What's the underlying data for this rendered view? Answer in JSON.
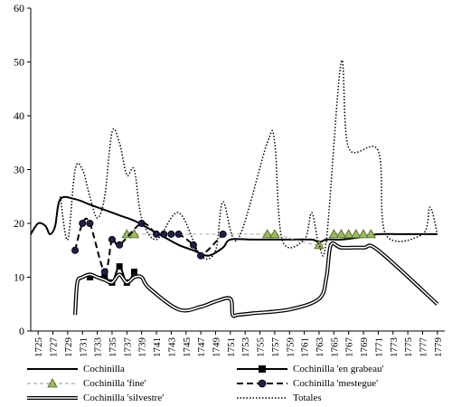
{
  "chart_data": {
    "type": "line",
    "title": "",
    "xlabel": "",
    "ylabel": "",
    "x_tick_labels": [
      "1725",
      "1727",
      "1729",
      "1731",
      "1733",
      "1735",
      "1737",
      "1739",
      "1741",
      "1743",
      "1745",
      "1747",
      "1749",
      "1751",
      "1753",
      "1755",
      "1757",
      "1759",
      "1761",
      "1763",
      "1765",
      "1767",
      "1769",
      "1771",
      "1773",
      "1775",
      "1777",
      "1779"
    ],
    "xlim": [
      1725,
      1781
    ],
    "ylim": [
      0,
      60
    ],
    "y_ticks": [
      0,
      10,
      20,
      30,
      40,
      50,
      60
    ],
    "grid": false,
    "legend_position": "bottom",
    "series": [
      {
        "name": "Cochinilla",
        "style": "solid-thick",
        "color": "#000000",
        "points": [
          [
            1725,
            18
          ],
          [
            1726,
            20
          ],
          [
            1727,
            19.5
          ],
          [
            1727.6,
            18
          ],
          [
            1728.3,
            19.5
          ],
          [
            1729,
            24.5
          ],
          [
            1731,
            24.5
          ],
          [
            1733,
            23.5
          ],
          [
            1735,
            22.5
          ],
          [
            1737,
            21.5
          ],
          [
            1739,
            20.5
          ],
          [
            1741,
            19
          ],
          [
            1743,
            17.5
          ],
          [
            1745,
            16
          ],
          [
            1747,
            15
          ],
          [
            1749,
            14
          ],
          [
            1751,
            15.5
          ],
          [
            1752,
            17
          ],
          [
            1755,
            17
          ],
          [
            1760,
            17
          ],
          [
            1763,
            17
          ],
          [
            1764,
            16.5
          ],
          [
            1765,
            17
          ],
          [
            1767,
            17
          ],
          [
            1770,
            17.5
          ],
          [
            1772,
            18
          ],
          [
            1775,
            18
          ],
          [
            1780,
            18
          ]
        ]
      },
      {
        "name": "Cochinilla 'en grabeau'",
        "style": "solid-square",
        "color": "#000000",
        "points": [
          [
            1733,
            10
          ],
          [
            1735,
            10
          ],
          [
            1736,
            9
          ],
          [
            1737,
            12
          ],
          [
            1738,
            9
          ],
          [
            1739,
            11
          ]
        ]
      },
      {
        "name": "Cochinilla 'fine'",
        "style": "dashed-triangle",
        "color": "#9bbb59",
        "points": [
          [
            1738,
            18
          ],
          [
            1739,
            18
          ],
          [
            1757,
            18
          ],
          [
            1758,
            18
          ],
          [
            1764,
            16
          ],
          [
            1766,
            18
          ],
          [
            1767,
            18
          ],
          [
            1768,
            18
          ],
          [
            1769,
            18
          ],
          [
            1770,
            18
          ],
          [
            1771,
            18
          ]
        ]
      },
      {
        "name": "Cochinilla 'mestegue'",
        "style": "dashed-circle",
        "color": "#000000",
        "points": [
          [
            1731,
            15
          ],
          [
            1732,
            20
          ],
          [
            1733,
            20
          ],
          [
            1735,
            11
          ],
          [
            1736,
            17
          ],
          [
            1737,
            16
          ],
          [
            1740,
            20
          ],
          [
            1742,
            18
          ],
          [
            1743,
            18
          ],
          [
            1744,
            18
          ],
          [
            1745,
            18
          ],
          [
            1747,
            16
          ],
          [
            1748,
            14
          ],
          [
            1751,
            18
          ]
        ]
      },
      {
        "name": "Cochinilla 'silvestre'",
        "style": "double-line",
        "color": "#000000",
        "points": [
          [
            1731,
            3
          ],
          [
            1731.3,
            9
          ],
          [
            1732,
            10
          ],
          [
            1733,
            10.5
          ],
          [
            1734,
            10
          ],
          [
            1735,
            9.5
          ],
          [
            1736,
            9
          ],
          [
            1737,
            10.5
          ],
          [
            1738,
            9
          ],
          [
            1739,
            10
          ],
          [
            1740,
            10
          ],
          [
            1741,
            8
          ],
          [
            1745,
            4
          ],
          [
            1748,
            4.5
          ],
          [
            1750,
            5.5
          ],
          [
            1752,
            6
          ],
          [
            1752.3,
            3
          ],
          [
            1753,
            3
          ],
          [
            1755,
            3.3
          ],
          [
            1760,
            4
          ],
          [
            1764,
            6
          ],
          [
            1765,
            10
          ],
          [
            1765.6,
            16
          ],
          [
            1767,
            15.5
          ],
          [
            1770,
            15.5
          ],
          [
            1772,
            15
          ],
          [
            1780,
            5
          ]
        ]
      },
      {
        "name": "Totales",
        "style": "dotted",
        "color": "#000000",
        "points": [
          [
            1729,
            25
          ],
          [
            1730,
            17
          ],
          [
            1731,
            30
          ],
          [
            1732,
            30
          ],
          [
            1733,
            25
          ],
          [
            1734,
            21
          ],
          [
            1735,
            25
          ],
          [
            1736,
            37
          ],
          [
            1737,
            35
          ],
          [
            1738,
            29
          ],
          [
            1739,
            30
          ],
          [
            1740,
            21
          ],
          [
            1742,
            17
          ],
          [
            1745,
            22
          ],
          [
            1748,
            14
          ],
          [
            1750,
            15
          ],
          [
            1751,
            24
          ],
          [
            1753,
            17
          ],
          [
            1757,
            35
          ],
          [
            1758,
            35
          ],
          [
            1759,
            17
          ],
          [
            1762,
            17
          ],
          [
            1763,
            22
          ],
          [
            1764,
            16
          ],
          [
            1765,
            17
          ],
          [
            1767,
            50
          ],
          [
            1768,
            34
          ],
          [
            1772,
            33.5
          ],
          [
            1773,
            18
          ],
          [
            1778,
            18
          ],
          [
            1779,
            23
          ],
          [
            1780,
            18
          ]
        ]
      }
    ]
  }
}
